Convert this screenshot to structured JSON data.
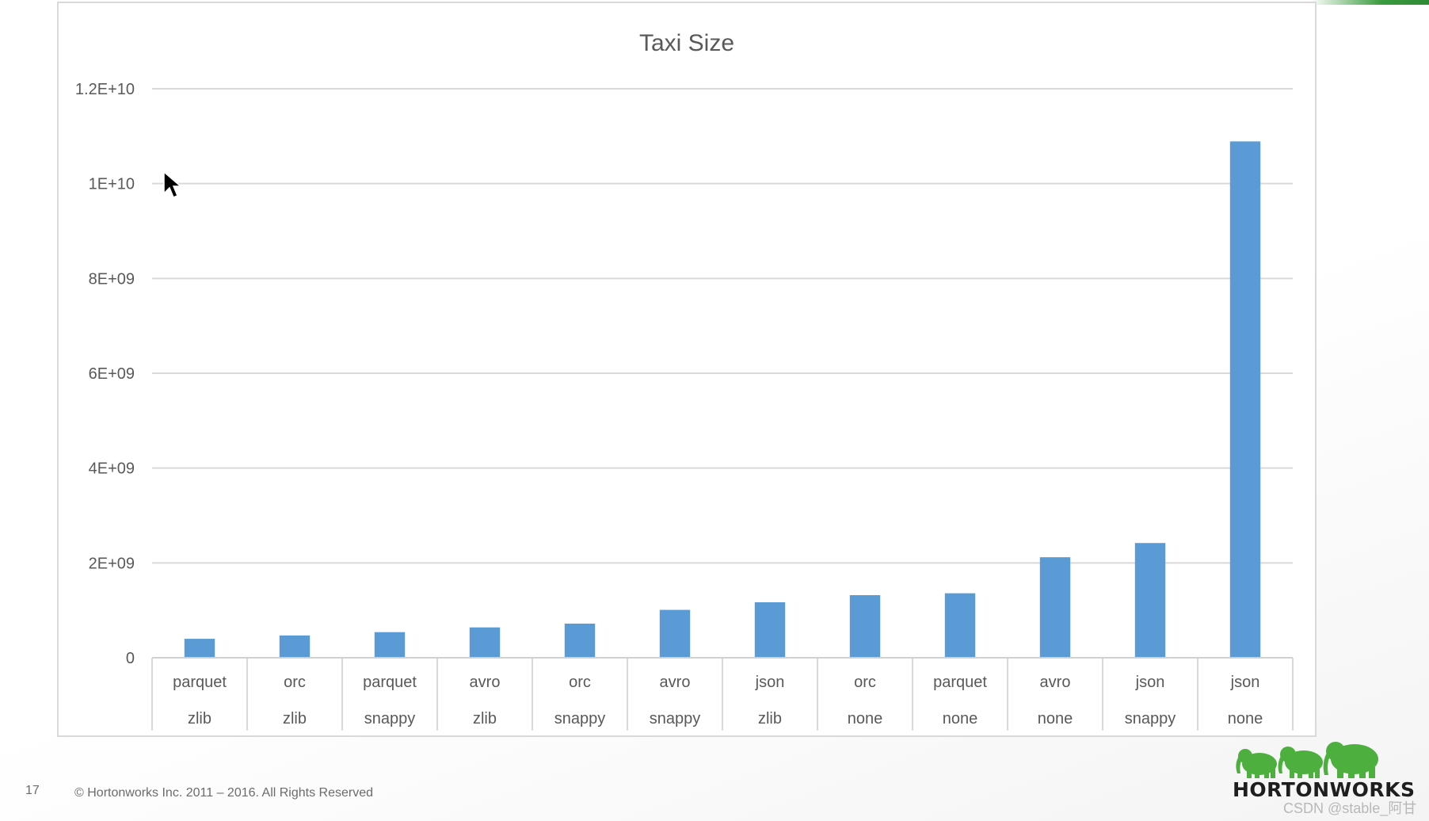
{
  "chart_data": {
    "type": "bar",
    "title": "Taxi Size",
    "categories": [
      [
        "parquet",
        "zlib"
      ],
      [
        "orc",
        "zlib"
      ],
      [
        "parquet",
        "snappy"
      ],
      [
        "avro",
        "zlib"
      ],
      [
        "orc",
        "snappy"
      ],
      [
        "avro",
        "snappy"
      ],
      [
        "json",
        "zlib"
      ],
      [
        "orc",
        "none"
      ],
      [
        "parquet",
        "none"
      ],
      [
        "avro",
        "none"
      ],
      [
        "json",
        "snappy"
      ],
      [
        "json",
        "none"
      ]
    ],
    "values": [
      400000000,
      470000000,
      540000000,
      640000000,
      720000000,
      1010000000,
      1170000000,
      1320000000,
      1360000000,
      2120000000,
      2420000000,
      10890000000
    ],
    "ylim": [
      0,
      12000000000
    ],
    "yticks": [
      0,
      2000000000,
      4000000000,
      6000000000,
      8000000000,
      10000000000,
      12000000000
    ],
    "ytick_labels": [
      "0",
      "2E+09",
      "4E+09",
      "6E+09",
      "8E+09",
      "1E+10",
      "1.2E+10"
    ],
    "grid": true,
    "bar_color": "#5b9bd5"
  },
  "footer": {
    "page_number": "17",
    "copyright": "© Hortonworks Inc. 2011 – 2016. All Rights Reserved"
  },
  "logo": {
    "text": "HORTONWORKS",
    "color": "#4caf3e"
  },
  "watermark": "CSDN @stable_阿甘"
}
